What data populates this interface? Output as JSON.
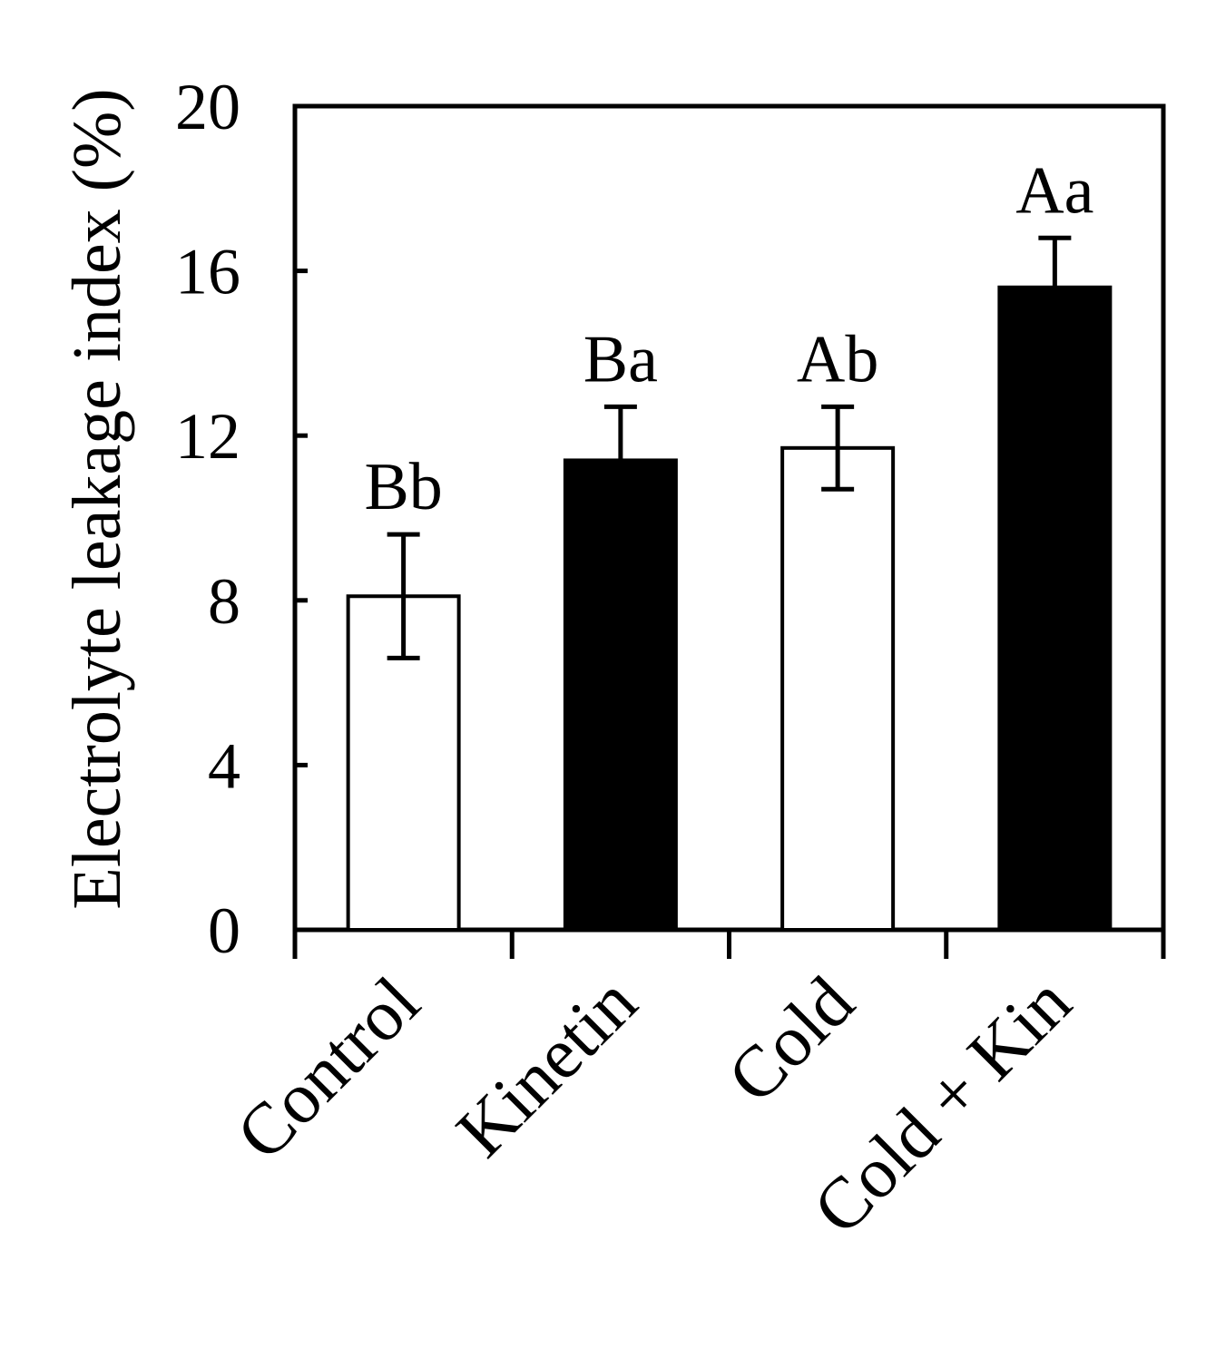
{
  "chart_data": {
    "type": "bar",
    "title": "",
    "xlabel": "",
    "ylabel": "Electrolyte leakage index (%)",
    "ylim": [
      0,
      20
    ],
    "yticks": [
      "0",
      "4",
      "8",
      "12",
      "16",
      "20"
    ],
    "grid": false,
    "categories": [
      "Control",
      "Kinetin",
      "Cold",
      "Cold + Kin"
    ],
    "values": [
      8.1,
      11.4,
      11.7,
      15.6
    ],
    "errors": [
      1.5,
      1.3,
      1.0,
      1.2
    ],
    "annotations": [
      "Bb",
      "Ba",
      "Ab",
      "Aa"
    ],
    "bar_fills": [
      "#ffffff",
      "#000000",
      "#ffffff",
      "#000000"
    ]
  }
}
